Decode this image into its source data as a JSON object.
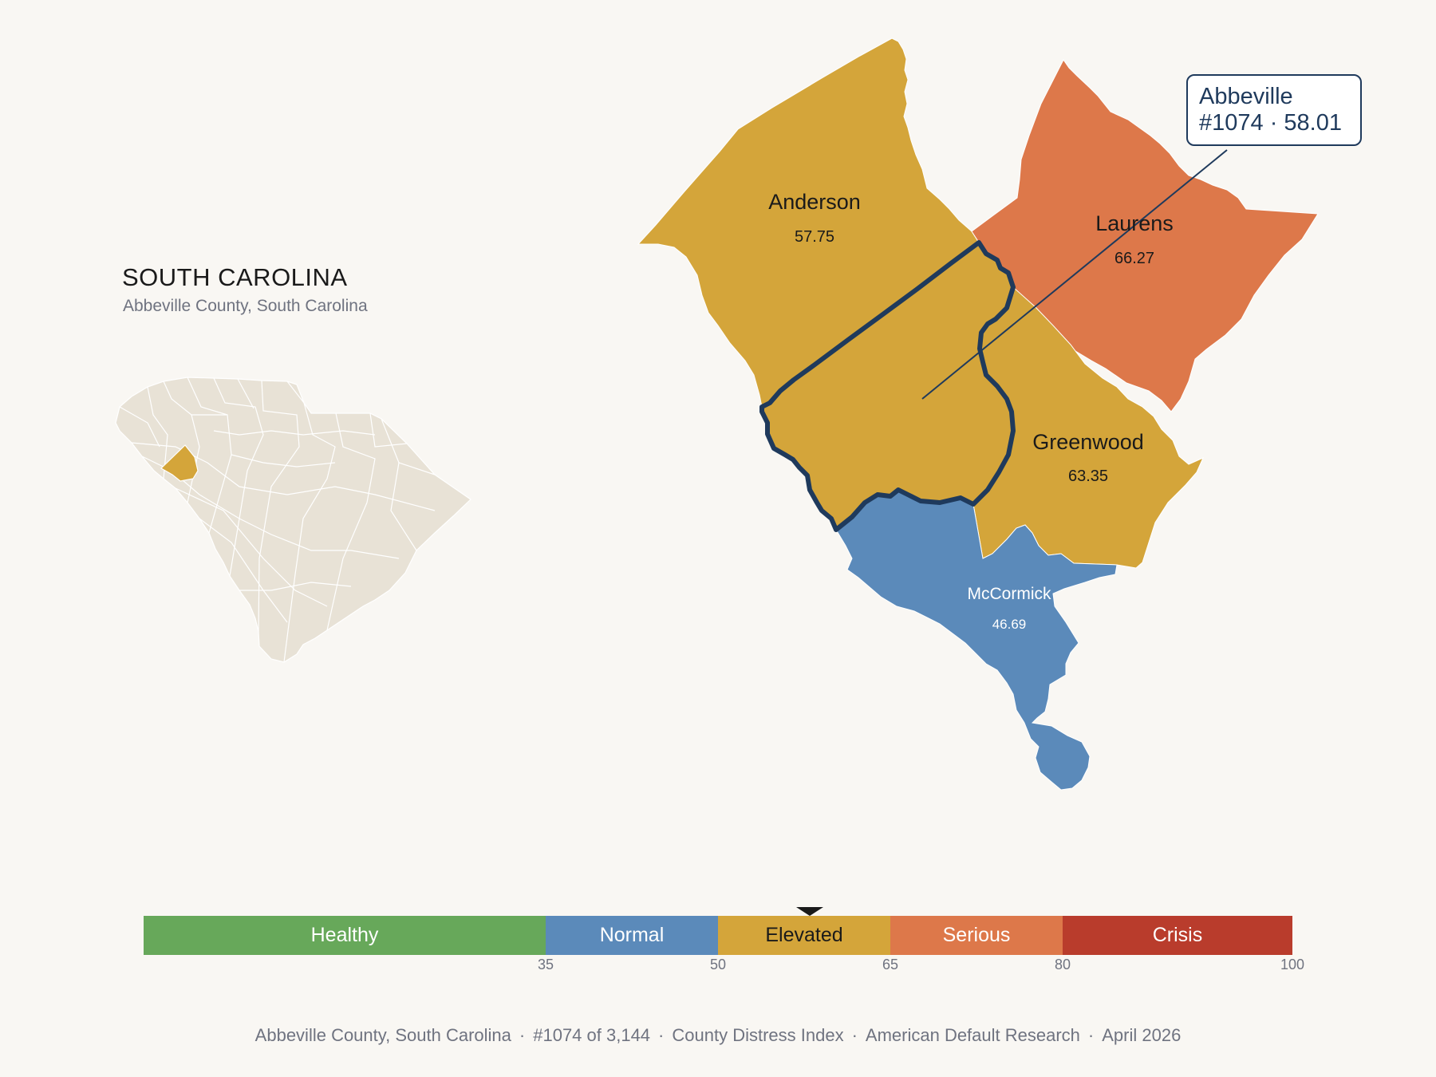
{
  "state": {
    "title": "SOUTH CAROLINA",
    "subtitle": "Abbeville County, South Carolina"
  },
  "counties": [
    {
      "name": "Anderson",
      "score": "57.75",
      "tier": "Elevated"
    },
    {
      "name": "Laurens",
      "score": "66.27",
      "tier": "Serious"
    },
    {
      "name": "Greenwood",
      "score": "63.35",
      "tier": "Elevated"
    },
    {
      "name": "McCormick",
      "score": "46.69",
      "tier": "Normal"
    },
    {
      "name": "Abbeville",
      "score": "58.01",
      "tier": "Elevated",
      "selected": true
    }
  ],
  "callout": {
    "name": "Abbeville",
    "detail": "#1074 · 58.01"
  },
  "legend": {
    "segments": [
      {
        "label": "Healthy",
        "from": 0,
        "to": 35,
        "color": "#67a85a",
        "text_color": "#ffffff"
      },
      {
        "label": "Normal",
        "from": 35,
        "to": 50,
        "color": "#5b8aba",
        "text_color": "#ffffff"
      },
      {
        "label": "Elevated",
        "from": 50,
        "to": 65,
        "color": "#d4a53a",
        "text_color": "#1a1a1a"
      },
      {
        "label": "Serious",
        "from": 65,
        "to": 80,
        "color": "#dd784a",
        "text_color": "#ffffff"
      },
      {
        "label": "Crisis",
        "from": 80,
        "to": 100,
        "color": "#b93c2c",
        "text_color": "#ffffff"
      }
    ],
    "ticks": [
      "35",
      "50",
      "65",
      "80",
      "100"
    ],
    "marker_value": 58.01
  },
  "colors": {
    "background": "#f9f7f3",
    "highlight_border": "#1f3a5c",
    "inset_state_fill": "#e8e2d6",
    "inset_highlight_fill": "#d4a53a"
  },
  "footer": {
    "county": "Abbeville County, South Carolina",
    "rank": "#1074 of 3,144",
    "index": "County Distress Index",
    "source": "American Default Research",
    "date": "April 2026"
  }
}
